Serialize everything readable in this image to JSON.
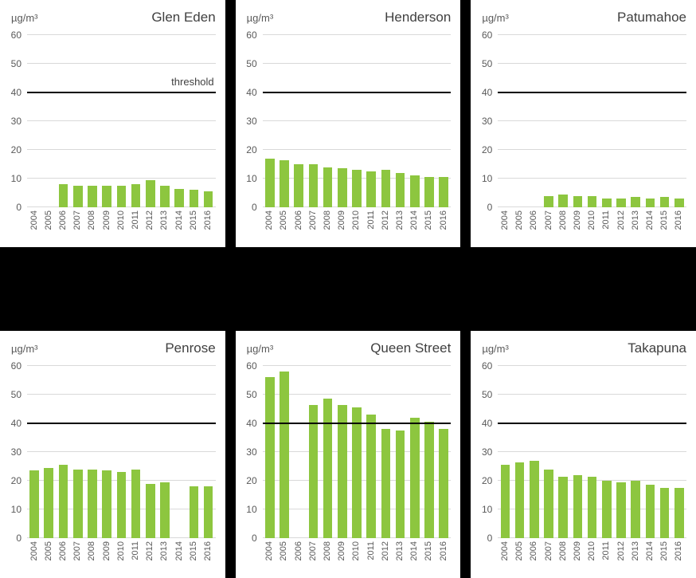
{
  "colors": {
    "bar": "#8dc63f",
    "grid": "#d9d9d9",
    "threshold": "#000000",
    "tick_text": "#595959",
    "title_text": "#404040",
    "page_background": "#000000",
    "panel_background": "#ffffff"
  },
  "chart_data": [
    {
      "type": "bar",
      "title": "Glen Eden",
      "ylabel": "µg/m³",
      "ylim": [
        0,
        60
      ],
      "yticks": [
        0,
        10,
        20,
        30,
        40,
        50,
        60
      ],
      "grid": true,
      "threshold": 40,
      "threshold_label": "threshold",
      "categories": [
        "2004",
        "2005",
        "2006",
        "2007",
        "2008",
        "2009",
        "2010",
        "2011",
        "2012",
        "2013",
        "2014",
        "2015",
        "2016"
      ],
      "values": [
        null,
        null,
        8,
        7.5,
        7.5,
        7.5,
        7.5,
        8,
        9.5,
        7.5,
        6.5,
        6,
        5.5
      ]
    },
    {
      "type": "bar",
      "title": "Henderson",
      "ylabel": "µg/m³",
      "ylim": [
        0,
        60
      ],
      "yticks": [
        0,
        10,
        20,
        30,
        40,
        50,
        60
      ],
      "grid": true,
      "threshold": 40,
      "threshold_label": null,
      "categories": [
        "2004",
        "2005",
        "2006",
        "2007",
        "2008",
        "2009",
        "2010",
        "2011",
        "2012",
        "2013",
        "2014",
        "2015",
        "2016"
      ],
      "values": [
        17,
        16.5,
        15,
        15,
        14,
        13.5,
        13,
        12.5,
        13,
        12,
        11,
        10.5,
        10.5
      ]
    },
    {
      "type": "bar",
      "title": "Patumahoe",
      "ylabel": "µg/m³",
      "ylim": [
        0,
        60
      ],
      "yticks": [
        0,
        10,
        20,
        30,
        40,
        50,
        60
      ],
      "grid": true,
      "threshold": 40,
      "threshold_label": null,
      "categories": [
        "2004",
        "2005",
        "2006",
        "2007",
        "2008",
        "2009",
        "2010",
        "2011",
        "2012",
        "2013",
        "2014",
        "2015",
        "2016"
      ],
      "values": [
        null,
        null,
        null,
        4,
        4.5,
        4,
        4,
        3,
        3,
        3.5,
        3,
        3.5,
        3
      ]
    },
    {
      "type": "bar",
      "title": "Penrose",
      "ylabel": "µg/m³",
      "ylim": [
        0,
        60
      ],
      "yticks": [
        0,
        10,
        20,
        30,
        40,
        50,
        60
      ],
      "grid": true,
      "threshold": 40,
      "threshold_label": null,
      "categories": [
        "2004",
        "2005",
        "2006",
        "2007",
        "2008",
        "2009",
        "2010",
        "2011",
        "2012",
        "2013",
        "2014",
        "2015",
        "2016"
      ],
      "values": [
        23.5,
        24.5,
        25.5,
        24,
        24,
        23.5,
        23,
        24,
        19,
        19.5,
        null,
        18,
        18
      ]
    },
    {
      "type": "bar",
      "title": "Queen Street",
      "ylabel": "µg/m³",
      "ylim": [
        0,
        60
      ],
      "yticks": [
        0,
        10,
        20,
        30,
        40,
        50,
        60
      ],
      "grid": true,
      "threshold": 40,
      "threshold_label": null,
      "categories": [
        "2004",
        "2005",
        "2006",
        "2007",
        "2008",
        "2009",
        "2010",
        "2011",
        "2012",
        "2013",
        "2014",
        "2015",
        "2016"
      ],
      "values": [
        56,
        58,
        null,
        46.5,
        48.5,
        46.5,
        45.5,
        43,
        38,
        37.5,
        42,
        40.5,
        38
      ]
    },
    {
      "type": "bar",
      "title": "Takapuna",
      "ylabel": "µg/m³",
      "ylim": [
        0,
        60
      ],
      "yticks": [
        0,
        10,
        20,
        30,
        40,
        50,
        60
      ],
      "grid": true,
      "threshold": 40,
      "threshold_label": null,
      "categories": [
        "2004",
        "2005",
        "2006",
        "2007",
        "2008",
        "2009",
        "2010",
        "2011",
        "2012",
        "2013",
        "2014",
        "2015",
        "2016"
      ],
      "values": [
        25.5,
        26.5,
        27,
        24,
        21.5,
        22,
        21.5,
        20,
        19.5,
        20,
        18.5,
        17.5,
        17.5
      ]
    }
  ]
}
